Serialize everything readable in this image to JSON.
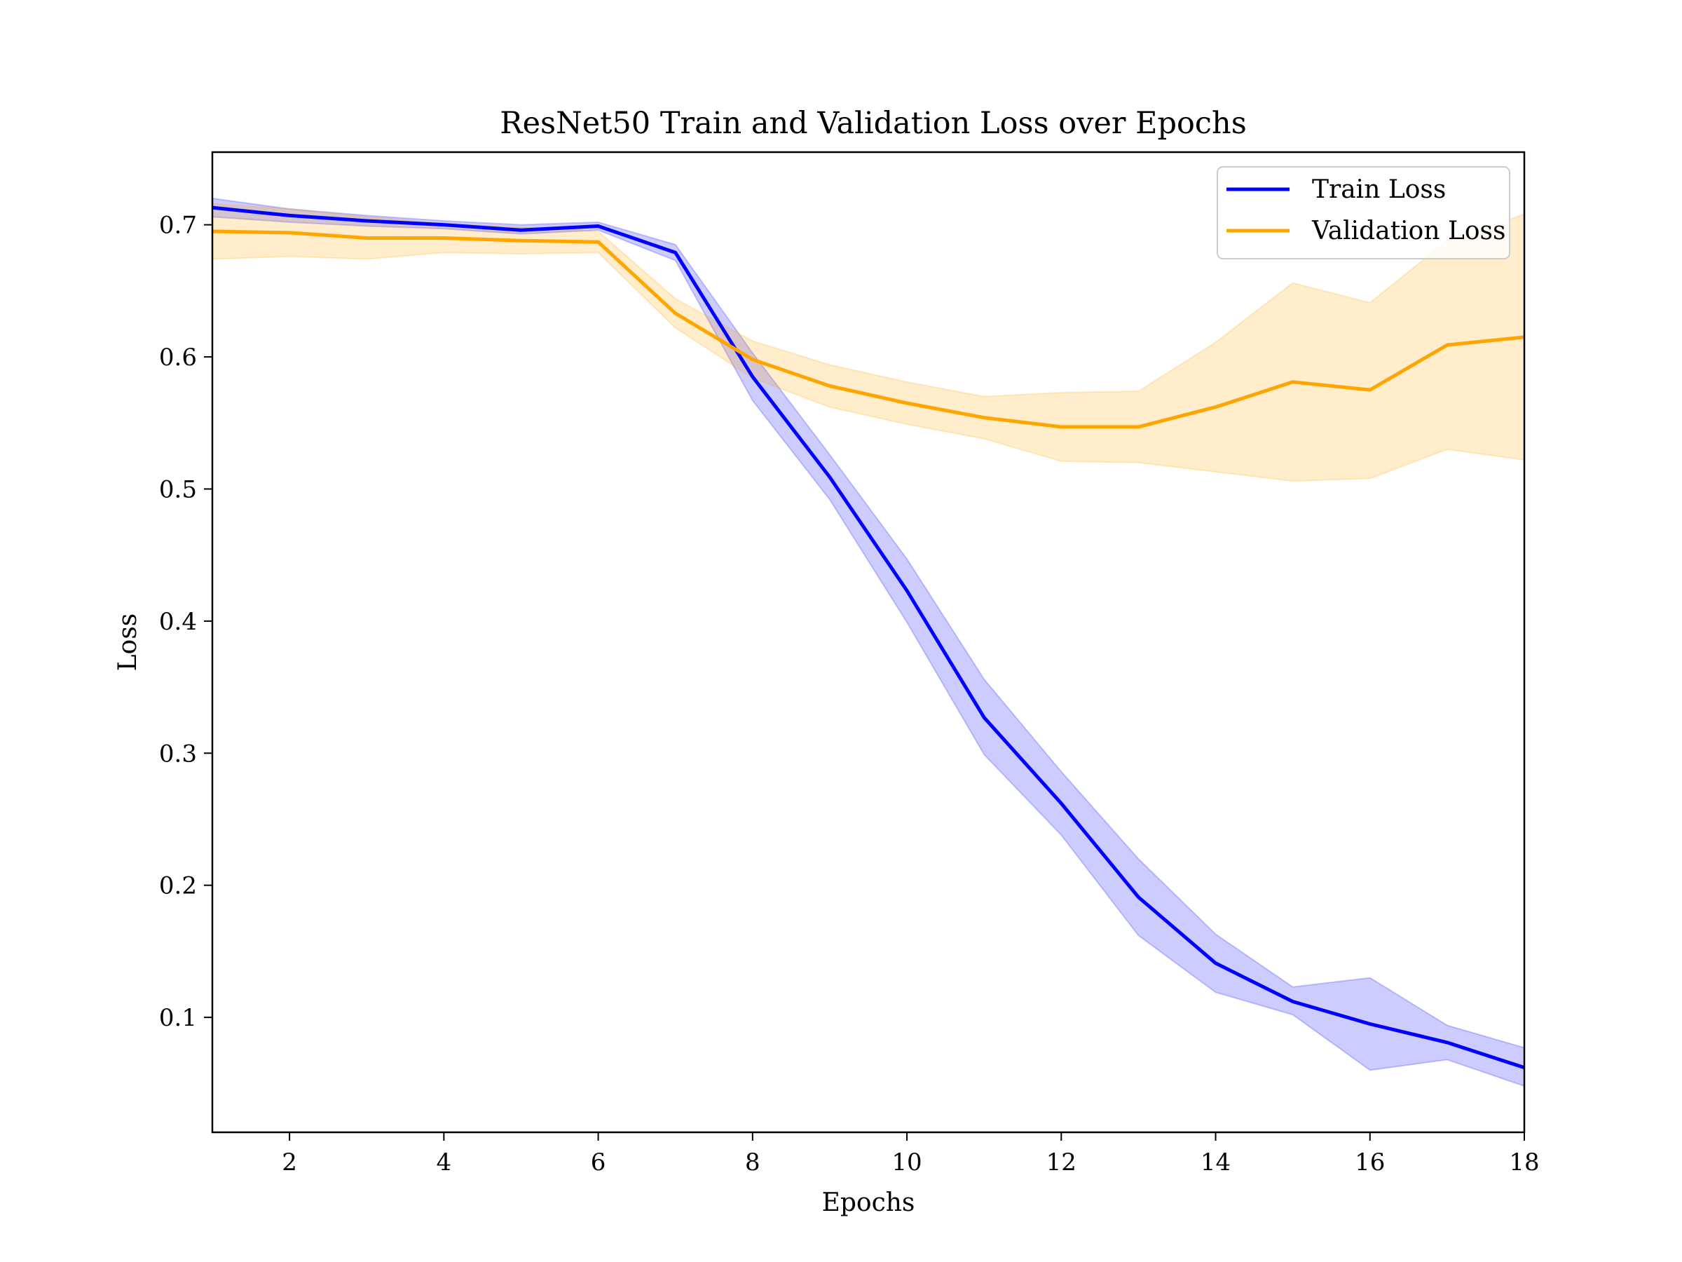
{
  "chart_data": {
    "type": "line",
    "title": "ResNet50 Train and Validation Loss over Epochs",
    "xlabel": "Epochs",
    "ylabel": "Loss",
    "xlim": [
      1,
      18
    ],
    "ylim": [
      0.013,
      0.755
    ],
    "xticks": [
      2,
      4,
      6,
      8,
      10,
      12,
      14,
      16,
      18
    ],
    "yticks": [
      0.1,
      0.2,
      0.3,
      0.4,
      0.5,
      0.6,
      0.7
    ],
    "grid": false,
    "legend_position": "top-right",
    "x": [
      1,
      2,
      3,
      4,
      5,
      6,
      7,
      8,
      9,
      10,
      11,
      12,
      13,
      14,
      15,
      16,
      17,
      18
    ],
    "series": [
      {
        "name": "Train Loss",
        "color": "#0000ff",
        "values": [
          0.713,
          0.707,
          0.703,
          0.7,
          0.696,
          0.699,
          0.679,
          0.585,
          0.509,
          0.423,
          0.327,
          0.262,
          0.191,
          0.141,
          0.112,
          0.095,
          0.081,
          0.062
        ],
        "lower": [
          0.706,
          0.702,
          0.699,
          0.697,
          0.693,
          0.696,
          0.673,
          0.567,
          0.492,
          0.399,
          0.299,
          0.238,
          0.162,
          0.119,
          0.102,
          0.06,
          0.068,
          0.048
        ],
        "upper": [
          0.72,
          0.712,
          0.707,
          0.703,
          0.7,
          0.702,
          0.685,
          0.603,
          0.526,
          0.447,
          0.356,
          0.286,
          0.22,
          0.163,
          0.123,
          0.13,
          0.094,
          0.077
        ]
      },
      {
        "name": "Validation Loss",
        "color": "#ffa500",
        "values": [
          0.695,
          0.694,
          0.69,
          0.69,
          0.688,
          0.687,
          0.633,
          0.598,
          0.578,
          0.565,
          0.554,
          0.547,
          0.547,
          0.562,
          0.581,
          0.575,
          0.609,
          0.615
        ],
        "lower": [
          0.674,
          0.676,
          0.674,
          0.679,
          0.678,
          0.679,
          0.622,
          0.584,
          0.562,
          0.549,
          0.538,
          0.521,
          0.52,
          0.513,
          0.506,
          0.508,
          0.53,
          0.522
        ],
        "upper": [
          0.716,
          0.712,
          0.706,
          0.701,
          0.698,
          0.695,
          0.644,
          0.612,
          0.594,
          0.581,
          0.57,
          0.573,
          0.574,
          0.611,
          0.656,
          0.641,
          0.688,
          0.708
        ]
      }
    ]
  }
}
